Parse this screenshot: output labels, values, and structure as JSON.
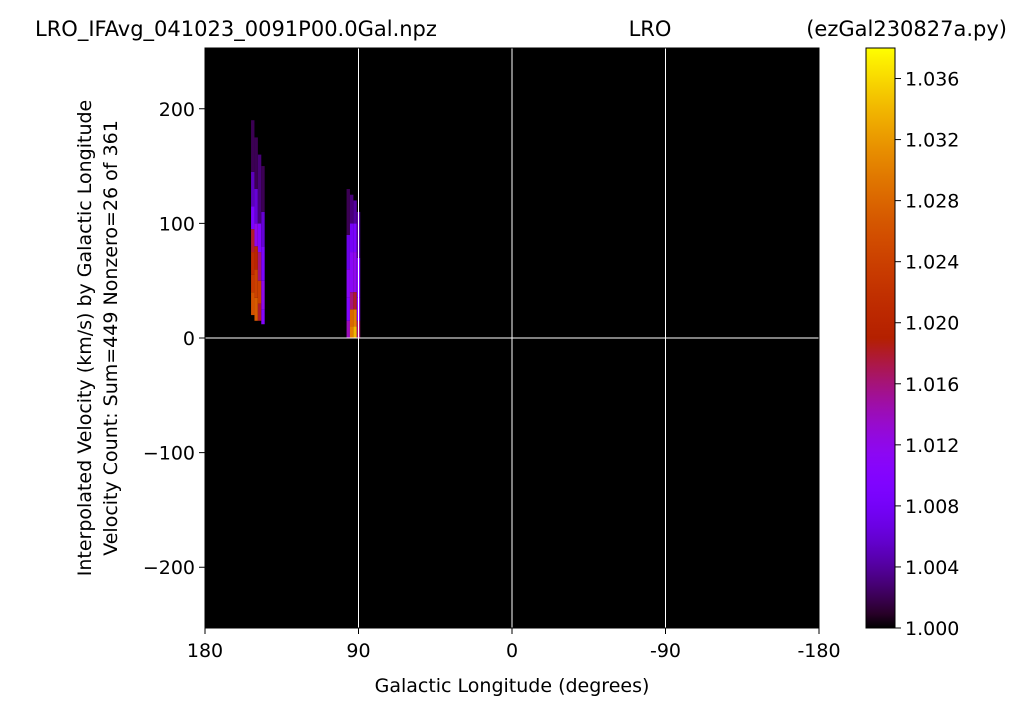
{
  "header": {
    "left": "LRO_IFAvg_041023_0091P00.0Gal.npz",
    "center": "LRO",
    "right": "(ezGal230827a.py)"
  },
  "chart_data": {
    "type": "heatmap",
    "title": "",
    "xlabel": "Galactic Longitude (degrees)",
    "ylabel": "Interpolated Velocity (km/s) by Galactic Longitude",
    "ylabel2": "Velocity Count: Sum=449 Nonzero=26 of 361",
    "xlim": [
      180,
      -180
    ],
    "ylim": [
      -253,
      253
    ],
    "x_ticks": [
      180,
      90,
      0,
      -90,
      -180
    ],
    "x_tick_labels": [
      "180",
      "90",
      "0",
      "-90",
      "-180"
    ],
    "y_ticks": [
      200,
      100,
      0,
      -100,
      -200
    ],
    "y_tick_labels": [
      "200",
      "100",
      "0",
      "−100",
      "−200"
    ],
    "grid_lines": {
      "x": [
        90,
        0,
        -90
      ],
      "y": [
        0
      ]
    },
    "background_value": 1.0,
    "colormap": "gnuplot",
    "colorbar": {
      "range": [
        1.0,
        1.038
      ],
      "ticks": [
        1.0,
        1.004,
        1.008,
        1.012,
        1.016,
        1.02,
        1.024,
        1.028,
        1.032,
        1.036
      ],
      "tick_labels": [
        "1.000",
        "1.004",
        "1.008",
        "1.012",
        "1.016",
        "1.020",
        "1.024",
        "1.028",
        "1.032",
        "1.036"
      ]
    },
    "columns": [
      {
        "lon": 152,
        "vmin": 20,
        "vmax": 190,
        "bands": [
          [
            20,
            40,
            1.026
          ],
          [
            40,
            55,
            1.023
          ],
          [
            55,
            75,
            1.021
          ],
          [
            75,
            95,
            1.018
          ],
          [
            95,
            115,
            1.009
          ],
          [
            115,
            145,
            1.005
          ],
          [
            145,
            190,
            1.002
          ]
        ]
      },
      {
        "lon": 150,
        "vmin": 15,
        "vmax": 175,
        "bands": [
          [
            15,
            35,
            1.027
          ],
          [
            35,
            60,
            1.024
          ],
          [
            60,
            80,
            1.02
          ],
          [
            80,
            100,
            1.012
          ],
          [
            100,
            130,
            1.006
          ],
          [
            130,
            175,
            1.002
          ]
        ]
      },
      {
        "lon": 148,
        "vmin": 15,
        "vmax": 160,
        "bands": [
          [
            15,
            30,
            1.018
          ],
          [
            30,
            50,
            1.024
          ],
          [
            50,
            75,
            1.016
          ],
          [
            75,
            100,
            1.01
          ],
          [
            100,
            160,
            1.003
          ]
        ]
      },
      {
        "lon": 146,
        "vmin": 12,
        "vmax": 150,
        "bands": [
          [
            12,
            25,
            1.01
          ],
          [
            25,
            50,
            1.012
          ],
          [
            50,
            80,
            1.009
          ],
          [
            80,
            110,
            1.006
          ],
          [
            110,
            150,
            1.002
          ]
        ]
      },
      {
        "lon": 96,
        "vmin": 0,
        "vmax": 130,
        "bands": [
          [
            0,
            15,
            1.014
          ],
          [
            15,
            35,
            1.01
          ],
          [
            35,
            60,
            1.011
          ],
          [
            60,
            90,
            1.007
          ],
          [
            90,
            130,
            1.002
          ]
        ]
      },
      {
        "lon": 94,
        "vmin": 0,
        "vmax": 125,
        "bands": [
          [
            0,
            10,
            1.03
          ],
          [
            10,
            25,
            1.028
          ],
          [
            25,
            40,
            1.016
          ],
          [
            40,
            75,
            1.011
          ],
          [
            75,
            100,
            1.008
          ],
          [
            100,
            125,
            1.003
          ]
        ]
      },
      {
        "lon": 92,
        "vmin": 0,
        "vmax": 120,
        "bands": [
          [
            0,
            10,
            1.034
          ],
          [
            10,
            25,
            1.03
          ],
          [
            25,
            40,
            1.018
          ],
          [
            40,
            75,
            1.012
          ],
          [
            75,
            100,
            1.009
          ],
          [
            100,
            120,
            1.004
          ]
        ]
      },
      {
        "lon": 90,
        "vmin": 0,
        "vmax": 110,
        "bands": [
          [
            0,
            15,
            1.016
          ],
          [
            15,
            35,
            1.011
          ],
          [
            35,
            70,
            1.01
          ],
          [
            70,
            110,
            1.004
          ]
        ]
      }
    ]
  }
}
